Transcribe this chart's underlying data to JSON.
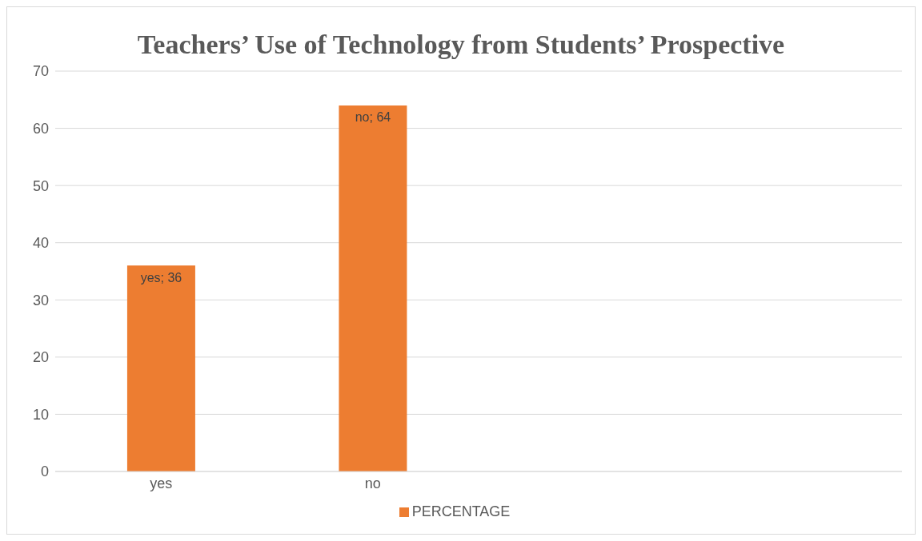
{
  "chart_data": {
    "type": "bar",
    "title": "Teachers’ Use of Technology from Students’ Prospective",
    "categories": [
      "yes",
      "no",
      null,
      null
    ],
    "series": [
      {
        "name": "PERCENTAGE",
        "color": "#ed7d31",
        "values": [
          36,
          64,
          null,
          null
        ],
        "value_labels": [
          "yes; 36",
          "no; 64",
          null,
          null
        ]
      }
    ],
    "ylim": [
      0,
      70
    ],
    "yticks": [
      0,
      10,
      20,
      30,
      40,
      50,
      60,
      70
    ],
    "grid": "y",
    "legend": "bottom"
  }
}
